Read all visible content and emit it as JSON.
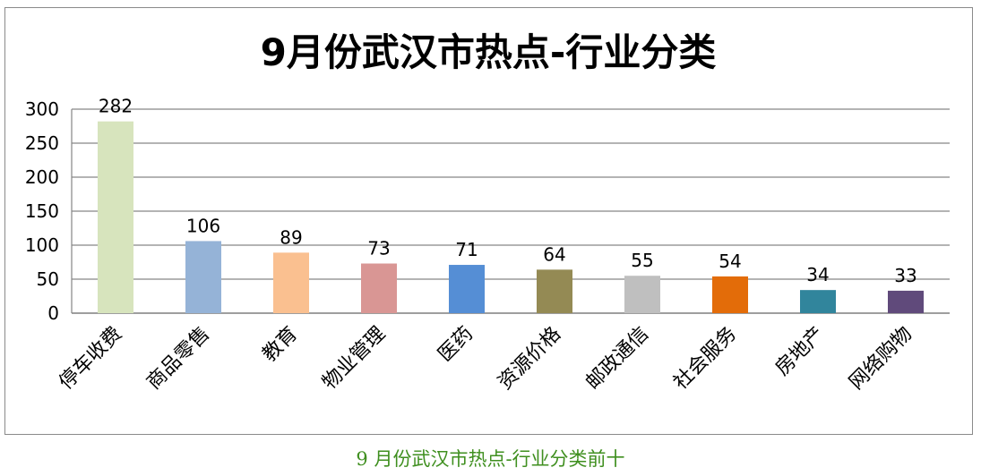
{
  "chart_data": {
    "type": "bar",
    "title": "9月份武汉市热点-行业分类",
    "categories": [
      "停车收费",
      "商品零售",
      "教育",
      "物业管理",
      "医药",
      "资源价格",
      "邮政通信",
      "社会服务",
      "房地产",
      "网络购物"
    ],
    "values": [
      282,
      106,
      89,
      73,
      71,
      64,
      55,
      54,
      34,
      33
    ],
    "colors": [
      "#d7e4bd",
      "#95b3d7",
      "#fac090",
      "#d99694",
      "#558ed5",
      "#948a54",
      "#bfbfbf",
      "#e36c09",
      "#31859c",
      "#604a7b"
    ],
    "xlabel": "",
    "ylabel": "",
    "ylim": [
      0,
      300
    ],
    "yticks": [
      0,
      50,
      100,
      150,
      200,
      250,
      300
    ],
    "grid": true,
    "legend": "none",
    "data_labels": true
  },
  "caption": "9 月份武汉市热点-行业分类前十"
}
